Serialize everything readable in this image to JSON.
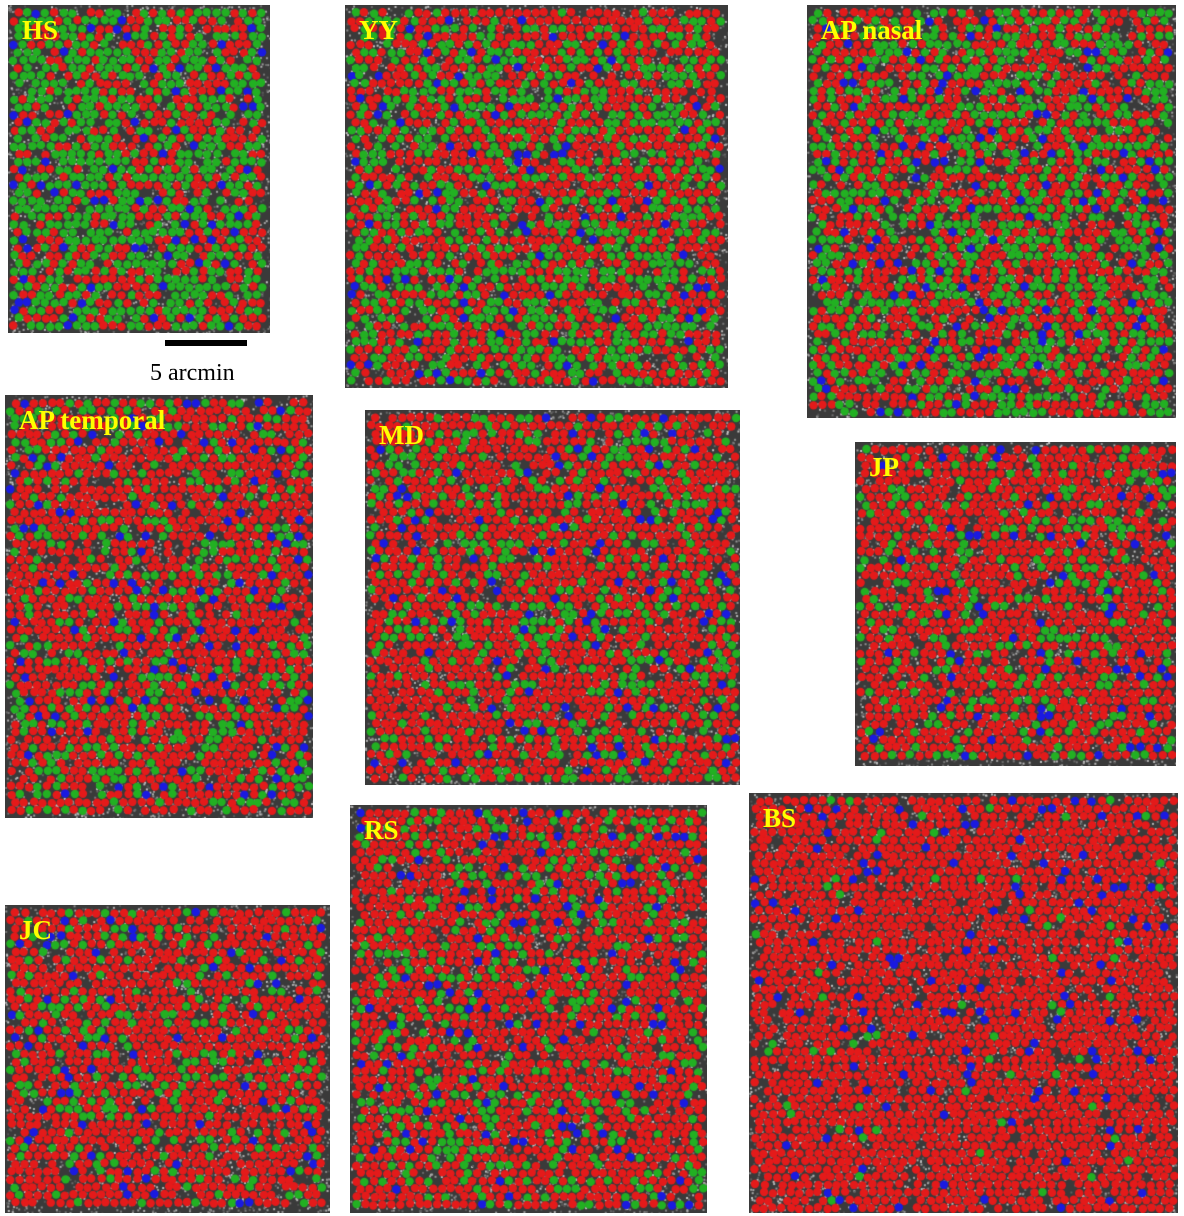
{
  "panels": [
    {
      "id": "hs",
      "label": "HS"
    },
    {
      "id": "yy",
      "label": "YY"
    },
    {
      "id": "ap_nasal",
      "label": "AP nasal"
    },
    {
      "id": "ap_temporal",
      "label": "AP temporal"
    },
    {
      "id": "md",
      "label": "MD"
    },
    {
      "id": "jp",
      "label": "JP"
    },
    {
      "id": "jc",
      "label": "JC"
    },
    {
      "id": "rs",
      "label": "RS"
    },
    {
      "id": "bs",
      "label": "BS"
    }
  ],
  "scale_bar": {
    "label": "5 arcmin"
  },
  "colors": {
    "L_cone": "#e41a1a",
    "M_cone": "#22b022",
    "S_cone": "#1a1ae0",
    "label": "#ffff00",
    "background": "#3a3a3a"
  }
}
